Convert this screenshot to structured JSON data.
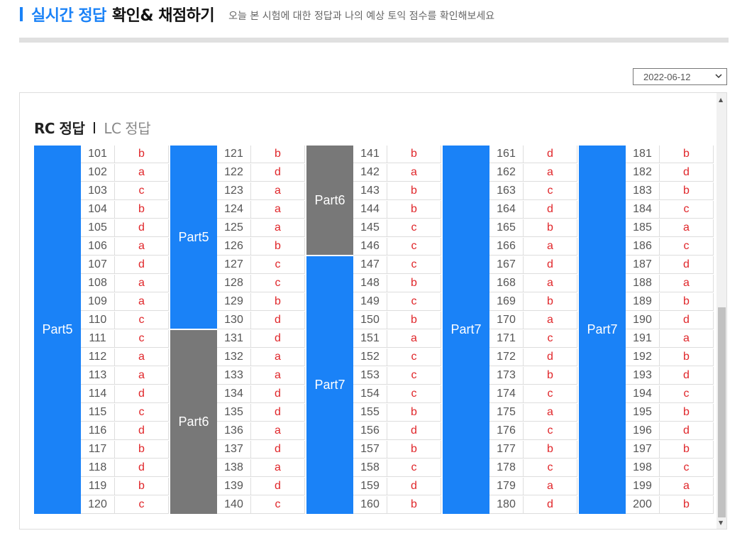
{
  "header": {
    "title_blue": "실시간 정답",
    "title_black": "확인& 채점하기",
    "subtitle": "오늘 본 시험에 대한 정답과 나의 예상 토익 점수를 확인해보세요"
  },
  "date_select": {
    "value": "2022-06-12"
  },
  "tabs": {
    "rc": "RC 정답",
    "lc": "LC 정답"
  },
  "colors": {
    "part_blue": "#1a82f7",
    "part_gray": "#787878",
    "answer_red": "#e0262a"
  },
  "columns": [
    {
      "parts": [
        {
          "label": "Part5",
          "rows": 20,
          "color": "blue"
        }
      ],
      "answers": [
        {
          "n": "101",
          "a": "b"
        },
        {
          "n": "102",
          "a": "a"
        },
        {
          "n": "103",
          "a": "c"
        },
        {
          "n": "104",
          "a": "b"
        },
        {
          "n": "105",
          "a": "d"
        },
        {
          "n": "106",
          "a": "a"
        },
        {
          "n": "107",
          "a": "d"
        },
        {
          "n": "108",
          "a": "a"
        },
        {
          "n": "109",
          "a": "a"
        },
        {
          "n": "110",
          "a": "c"
        },
        {
          "n": "111",
          "a": "c"
        },
        {
          "n": "112",
          "a": "a"
        },
        {
          "n": "113",
          "a": "a"
        },
        {
          "n": "114",
          "a": "d"
        },
        {
          "n": "115",
          "a": "c"
        },
        {
          "n": "116",
          "a": "d"
        },
        {
          "n": "117",
          "a": "b"
        },
        {
          "n": "118",
          "a": "d"
        },
        {
          "n": "119",
          "a": "b"
        },
        {
          "n": "120",
          "a": "c"
        }
      ]
    },
    {
      "parts": [
        {
          "label": "Part5",
          "rows": 10,
          "color": "blue"
        },
        {
          "label": "Part6",
          "rows": 10,
          "color": "gray"
        }
      ],
      "answers": [
        {
          "n": "121",
          "a": "b"
        },
        {
          "n": "122",
          "a": "d"
        },
        {
          "n": "123",
          "a": "a"
        },
        {
          "n": "124",
          "a": "a"
        },
        {
          "n": "125",
          "a": "a"
        },
        {
          "n": "126",
          "a": "b"
        },
        {
          "n": "127",
          "a": "c"
        },
        {
          "n": "128",
          "a": "c"
        },
        {
          "n": "129",
          "a": "b"
        },
        {
          "n": "130",
          "a": "d"
        },
        {
          "n": "131",
          "a": "d"
        },
        {
          "n": "132",
          "a": "a"
        },
        {
          "n": "133",
          "a": "a"
        },
        {
          "n": "134",
          "a": "d"
        },
        {
          "n": "135",
          "a": "d"
        },
        {
          "n": "136",
          "a": "a"
        },
        {
          "n": "137",
          "a": "d"
        },
        {
          "n": "138",
          "a": "a"
        },
        {
          "n": "139",
          "a": "d"
        },
        {
          "n": "140",
          "a": "c"
        }
      ]
    },
    {
      "parts": [
        {
          "label": "Part6",
          "rows": 6,
          "color": "gray"
        },
        {
          "label": "Part7",
          "rows": 14,
          "color": "blue"
        }
      ],
      "answers": [
        {
          "n": "141",
          "a": "b"
        },
        {
          "n": "142",
          "a": "a"
        },
        {
          "n": "143",
          "a": "b"
        },
        {
          "n": "144",
          "a": "b"
        },
        {
          "n": "145",
          "a": "c"
        },
        {
          "n": "146",
          "a": "c"
        },
        {
          "n": "147",
          "a": "c"
        },
        {
          "n": "148",
          "a": "b"
        },
        {
          "n": "149",
          "a": "c"
        },
        {
          "n": "150",
          "a": "b"
        },
        {
          "n": "151",
          "a": "a"
        },
        {
          "n": "152",
          "a": "c"
        },
        {
          "n": "153",
          "a": "c"
        },
        {
          "n": "154",
          "a": "c"
        },
        {
          "n": "155",
          "a": "b"
        },
        {
          "n": "156",
          "a": "d"
        },
        {
          "n": "157",
          "a": "b"
        },
        {
          "n": "158",
          "a": "c"
        },
        {
          "n": "159",
          "a": "d"
        },
        {
          "n": "160",
          "a": "b"
        }
      ]
    },
    {
      "parts": [
        {
          "label": "Part7",
          "rows": 20,
          "color": "blue"
        }
      ],
      "answers": [
        {
          "n": "161",
          "a": "d"
        },
        {
          "n": "162",
          "a": "a"
        },
        {
          "n": "163",
          "a": "c"
        },
        {
          "n": "164",
          "a": "d"
        },
        {
          "n": "165",
          "a": "b"
        },
        {
          "n": "166",
          "a": "a"
        },
        {
          "n": "167",
          "a": "d"
        },
        {
          "n": "168",
          "a": "a"
        },
        {
          "n": "169",
          "a": "b"
        },
        {
          "n": "170",
          "a": "a"
        },
        {
          "n": "171",
          "a": "c"
        },
        {
          "n": "172",
          "a": "d"
        },
        {
          "n": "173",
          "a": "b"
        },
        {
          "n": "174",
          "a": "c"
        },
        {
          "n": "175",
          "a": "a"
        },
        {
          "n": "176",
          "a": "c"
        },
        {
          "n": "177",
          "a": "b"
        },
        {
          "n": "178",
          "a": "c"
        },
        {
          "n": "179",
          "a": "a"
        },
        {
          "n": "180",
          "a": "d"
        }
      ]
    },
    {
      "parts": [
        {
          "label": "Part7",
          "rows": 20,
          "color": "blue"
        }
      ],
      "answers": [
        {
          "n": "181",
          "a": "b"
        },
        {
          "n": "182",
          "a": "d"
        },
        {
          "n": "183",
          "a": "b"
        },
        {
          "n": "184",
          "a": "c"
        },
        {
          "n": "185",
          "a": "a"
        },
        {
          "n": "186",
          "a": "c"
        },
        {
          "n": "187",
          "a": "d"
        },
        {
          "n": "188",
          "a": "a"
        },
        {
          "n": "189",
          "a": "b"
        },
        {
          "n": "190",
          "a": "d"
        },
        {
          "n": "191",
          "a": "a"
        },
        {
          "n": "192",
          "a": "b"
        },
        {
          "n": "193",
          "a": "d"
        },
        {
          "n": "194",
          "a": "c"
        },
        {
          "n": "195",
          "a": "b"
        },
        {
          "n": "196",
          "a": "d"
        },
        {
          "n": "197",
          "a": "b"
        },
        {
          "n": "198",
          "a": "c"
        },
        {
          "n": "199",
          "a": "a"
        },
        {
          "n": "200",
          "a": "b"
        }
      ]
    }
  ]
}
